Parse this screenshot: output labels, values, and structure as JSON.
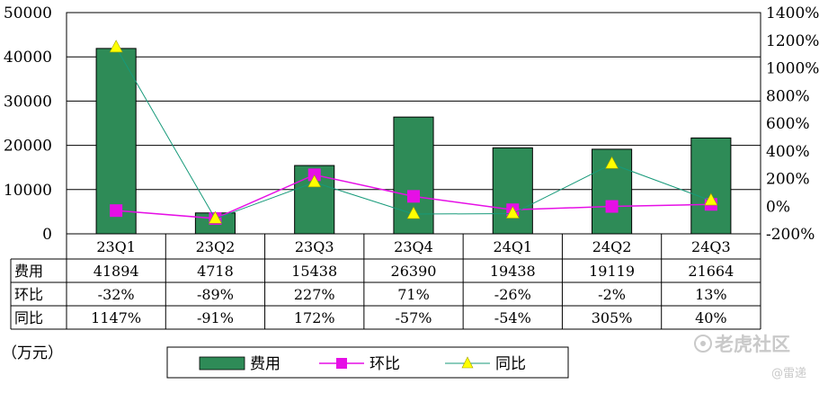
{
  "chart_data": {
    "type": "bar",
    "categories": [
      "23Q1",
      "23Q2",
      "23Q3",
      "23Q4",
      "24Q1",
      "24Q2",
      "24Q3"
    ],
    "unit_label": "（万元）",
    "left_axis": {
      "min": 0,
      "max": 50000,
      "step": 10000,
      "ticks": [
        "0",
        "10000",
        "20000",
        "30000",
        "40000",
        "50000"
      ]
    },
    "right_axis": {
      "min": -2,
      "max": 14,
      "step": 2,
      "ticks": [
        "-200%",
        "0%",
        "200%",
        "400%",
        "600%",
        "800%",
        "1000%",
        "1200%",
        "1400%"
      ]
    },
    "grid": true,
    "legend_position": "bottom",
    "series": [
      {
        "name": "费用",
        "type": "bar",
        "axis": "left",
        "color": "#2e8b57",
        "values": [
          41894,
          4718,
          15438,
          26390,
          19438,
          19119,
          21664
        ]
      },
      {
        "name": "环比",
        "type": "line",
        "axis": "right",
        "color": "#e60fe6",
        "marker": "square",
        "values": [
          -0.32,
          -0.89,
          2.27,
          0.71,
          -0.26,
          -0.02,
          0.13
        ]
      },
      {
        "name": "同比",
        "type": "line",
        "axis": "right",
        "color": "#179a7a",
        "marker": "triangle",
        "marker_color": "#ffff00",
        "values": [
          11.47,
          -0.91,
          1.72,
          -0.57,
          -0.54,
          3.05,
          0.4
        ]
      }
    ],
    "table": {
      "rows": [
        {
          "label": "费用",
          "cells": [
            "41894",
            "4718",
            "15438",
            "26390",
            "19438",
            "19119",
            "21664"
          ]
        },
        {
          "label": "环比",
          "cells": [
            "-32%",
            "-89%",
            "227%",
            "71%",
            "-26%",
            "-2%",
            "13%"
          ]
        },
        {
          "label": "同比",
          "cells": [
            "1147%",
            "-91%",
            "172%",
            "-57%",
            "-54%",
            "305%",
            "40%"
          ]
        }
      ]
    }
  },
  "watermark": {
    "brand": "老虎社区",
    "handle": "@雷递",
    "icon": "tiger-logo-icon"
  }
}
